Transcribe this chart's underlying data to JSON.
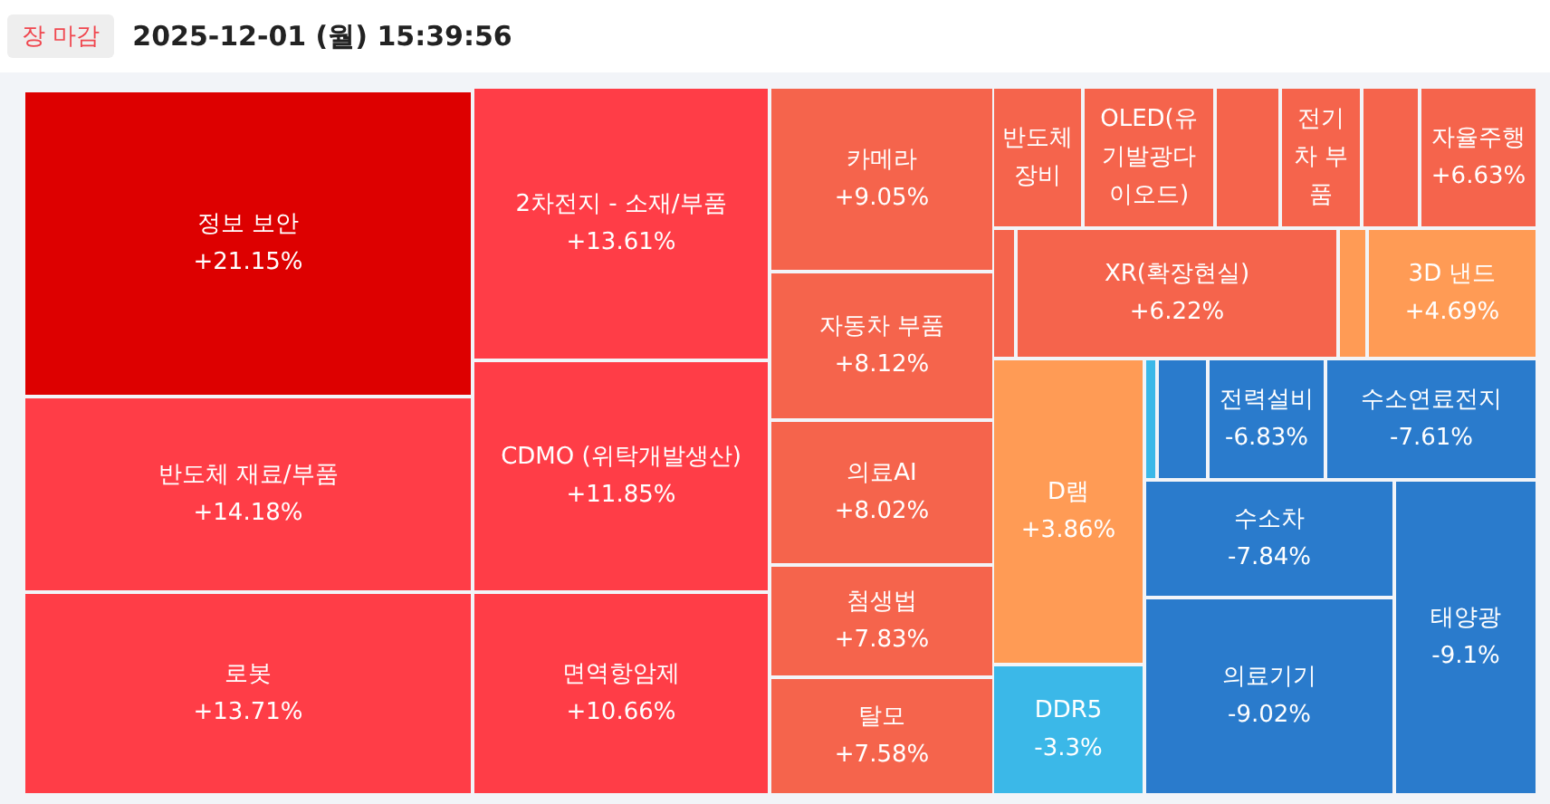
{
  "chart_data": {
    "type": "other",
    "title": "2025-12-01 (월) 15:39:56",
    "annotations": [
      "장 마감"
    ],
    "categories": [
      "정보 보안",
      "2차전지 - 소재/부품",
      "반도체 재료/부품",
      "CDMO (위탁개발생산)",
      "로봇",
      "면역항암제",
      "카메라",
      "자동차 부품",
      "의료AI",
      "첨생법",
      "탈모",
      "반도체 장비",
      "OLED(유기발광다이오드)",
      null,
      "전기차 부품",
      null,
      "자율주행",
      null,
      "XR(확장현실)",
      null,
      "3D 낸드",
      "D램",
      "DDR5",
      null,
      null,
      "전력설비",
      "수소연료전지",
      "수소차",
      "의료기기",
      "태양광"
    ],
    "values": [
      21.15,
      13.61,
      14.18,
      11.85,
      13.71,
      10.66,
      9.05,
      8.12,
      8.02,
      7.83,
      7.58,
      null,
      null,
      null,
      null,
      null,
      6.63,
      null,
      6.22,
      null,
      4.69,
      3.86,
      -3.3,
      null,
      null,
      -6.83,
      -7.61,
      -7.84,
      -9.02,
      -9.1
    ],
    "value_labels": [
      "+21.15%",
      "+13.61%",
      "+14.18%",
      "+11.85%",
      "+13.71%",
      "+10.66%",
      "+9.05%",
      "+8.12%",
      "+8.02%",
      "+7.83%",
      "+7.58%",
      null,
      null,
      null,
      null,
      null,
      "+6.63%",
      null,
      "+6.22%",
      null,
      "+4.69%",
      "+3.86%",
      "-3.3%",
      null,
      null,
      "-6.83%",
      "-7.61%",
      "-7.84%",
      "-9.02%",
      "-9.1%"
    ],
    "colors": [
      "#dd0000",
      "#ff3d47",
      "#ff3d47",
      "#ff3d47",
      "#ff3d47",
      "#ff3d47",
      "#f5644c",
      "#f5644c",
      "#f5644c",
      "#f5644c",
      "#f5644c",
      "#f5644c",
      "#f5644c",
      "#f5644c",
      "#f5644c",
      "#f5644c",
      "#f5644c",
      "#f5644c",
      "#f5644c",
      "#ff9b55",
      "#ff9b55",
      "#ff9b55",
      "#3bb8e8",
      "#3bb8e8",
      "#2a7bcc",
      "#2a7bcc",
      "#2a7bcc",
      "#2a7bcc",
      "#2a7bcc",
      "#2a7bcc"
    ]
  }
}
